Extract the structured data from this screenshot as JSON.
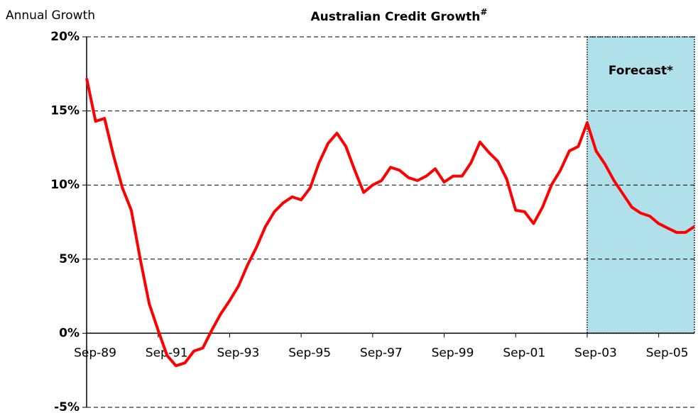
{
  "chart_data": {
    "type": "line",
    "title": "Australian Credit Growth",
    "title_superscript": "#",
    "y_label": "Annual Growth",
    "forecast_label": "Forecast*",
    "forecast_start": "Sep-03",
    "forecast_color": "#b0e0ea",
    "categories": [
      "Sep-89",
      "Dec-89",
      "Mar-90",
      "Jun-90",
      "Sep-90",
      "Dec-90",
      "Mar-91",
      "Jun-91",
      "Sep-91",
      "Dec-91",
      "Mar-92",
      "Jun-92",
      "Sep-92",
      "Dec-92",
      "Mar-93",
      "Jun-93",
      "Sep-93",
      "Dec-93",
      "Mar-94",
      "Jun-94",
      "Sep-94",
      "Dec-94",
      "Mar-95",
      "Jun-95",
      "Sep-95",
      "Dec-95",
      "Mar-96",
      "Jun-96",
      "Sep-96",
      "Dec-96",
      "Mar-97",
      "Jun-97",
      "Sep-97",
      "Dec-97",
      "Mar-98",
      "Jun-98",
      "Sep-98",
      "Dec-98",
      "Mar-99",
      "Jun-99",
      "Sep-99",
      "Dec-99",
      "Mar-00",
      "Jun-00",
      "Sep-00",
      "Dec-00",
      "Mar-01",
      "Jun-01",
      "Sep-01",
      "Dec-01",
      "Mar-02",
      "Jun-02",
      "Sep-02",
      "Dec-02",
      "Mar-03",
      "Jun-03",
      "Sep-03",
      "Dec-03",
      "Mar-04",
      "Jun-04",
      "Sep-04",
      "Dec-04",
      "Mar-05",
      "Jun-05",
      "Sep-05",
      "Dec-05",
      "Mar-06",
      "Jun-06",
      "Sep-06"
    ],
    "series": [
      {
        "name": "Annual Growth",
        "color": "#ff0000",
        "values": [
          17.2,
          14.3,
          14.5,
          12,
          9.8,
          8.3,
          5,
          2,
          0.2,
          -1.5,
          -2.2,
          -2,
          -1.2,
          -1,
          0.2,
          1.3,
          2.2,
          3.2,
          4.6,
          5.8,
          7.2,
          8.2,
          8.8,
          9.2,
          9,
          9.8,
          11.5,
          12.8,
          13.5,
          12.6,
          11,
          9.5,
          10,
          10.3,
          11.2,
          11,
          10.5,
          10.3,
          10.6,
          11.1,
          10.2,
          10.6,
          10.6,
          11.5,
          12.9,
          12.2,
          11.6,
          10.4,
          8.3,
          8.2,
          7.4,
          8.5,
          10,
          11,
          12.3,
          12.6,
          14.2,
          12.3,
          11.4,
          10.3,
          9.4,
          8.5,
          8.1,
          7.9,
          7.4,
          7.1,
          6.8,
          6.8,
          7.2
        ]
      }
    ],
    "xticks": [
      "Sep-89",
      "Sep-91",
      "Sep-93",
      "Sep-95",
      "Sep-97",
      "Sep-99",
      "Sep-01",
      "Sep-03",
      "Sep-05"
    ],
    "ylim": [
      -5,
      20
    ],
    "yticks": [
      {
        "value": -5,
        "label": "-5%"
      },
      {
        "value": 0,
        "label": "0%"
      },
      {
        "value": 5,
        "label": "5%"
      },
      {
        "value": 10,
        "label": "10%"
      },
      {
        "value": 15,
        "label": "15%"
      },
      {
        "value": 20,
        "label": "20%"
      }
    ],
    "grid": true
  }
}
